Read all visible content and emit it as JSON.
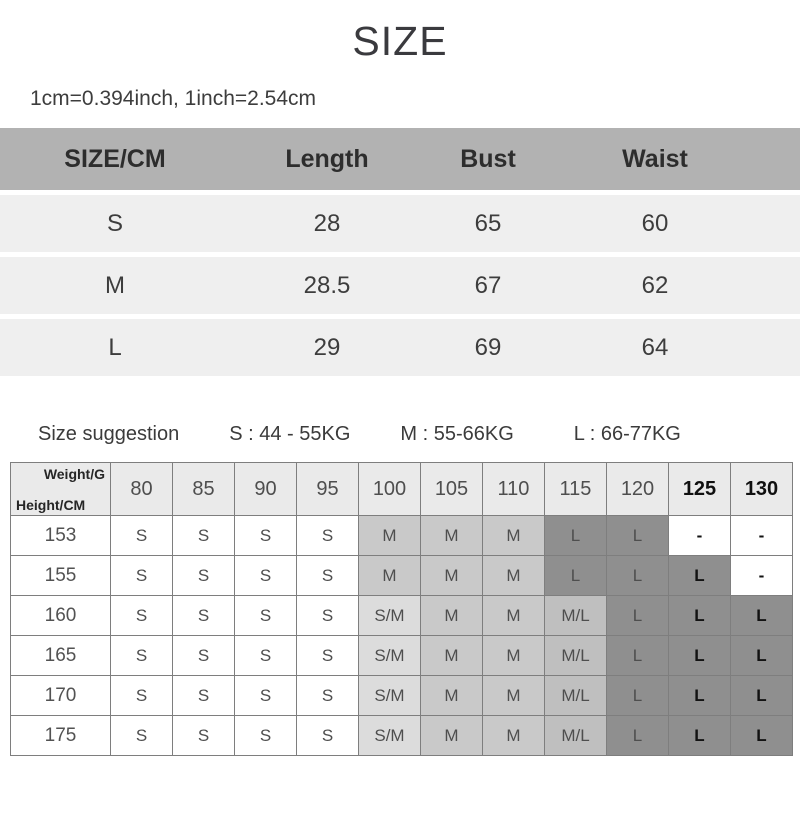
{
  "title": "SIZE",
  "conversion_note": "1cm=0.394inch, 1inch=2.54cm",
  "size_suggestion": {
    "label": "Size suggestion",
    "items": [
      "S : 44 - 55KG",
      "M : 55-66KG",
      "L : 66-77KG"
    ]
  },
  "chart_data": [
    {
      "type": "table",
      "name": "size-measurements-cm",
      "columns": [
        "SIZE/CM",
        "Length",
        "Bust",
        "Waist"
      ],
      "rows": [
        [
          "S",
          "28",
          "65",
          "60"
        ],
        [
          "M",
          "28.5",
          "67",
          "62"
        ],
        [
          "L",
          "29",
          "69",
          "64"
        ]
      ]
    },
    {
      "type": "table",
      "name": "height-weight-size-matrix",
      "corner_top_label": "Weight/G",
      "corner_bottom_label": "Height/CM",
      "weight_columns": [
        "80",
        "85",
        "90",
        "95",
        "100",
        "105",
        "110",
        "115",
        "120",
        "125",
        "130"
      ],
      "bold_weight_columns": [
        "125",
        "130"
      ],
      "rows": [
        {
          "height": "153",
          "cells": [
            {
              "v": "S",
              "s": "plain"
            },
            {
              "v": "S",
              "s": "plain"
            },
            {
              "v": "S",
              "s": "plain"
            },
            {
              "v": "S",
              "s": "plain"
            },
            {
              "v": "M",
              "s": "m"
            },
            {
              "v": "M",
              "s": "m"
            },
            {
              "v": "M",
              "s": "m"
            },
            {
              "v": "L",
              "s": "l"
            },
            {
              "v": "L",
              "s": "l"
            },
            {
              "v": "-",
              "s": "plain"
            },
            {
              "v": "-",
              "s": "plain"
            }
          ]
        },
        {
          "height": "155",
          "cells": [
            {
              "v": "S",
              "s": "plain"
            },
            {
              "v": "S",
              "s": "plain"
            },
            {
              "v": "S",
              "s": "plain"
            },
            {
              "v": "S",
              "s": "plain"
            },
            {
              "v": "M",
              "s": "m"
            },
            {
              "v": "M",
              "s": "m"
            },
            {
              "v": "M",
              "s": "m"
            },
            {
              "v": "L",
              "s": "l"
            },
            {
              "v": "L",
              "s": "l"
            },
            {
              "v": "L",
              "s": "l"
            },
            {
              "v": "-",
              "s": "plain"
            }
          ]
        },
        {
          "height": "160",
          "cells": [
            {
              "v": "S",
              "s": "plain"
            },
            {
              "v": "S",
              "s": "plain"
            },
            {
              "v": "S",
              "s": "plain"
            },
            {
              "v": "S",
              "s": "plain"
            },
            {
              "v": "S/M",
              "s": "sm"
            },
            {
              "v": "M",
              "s": "m"
            },
            {
              "v": "M",
              "s": "m"
            },
            {
              "v": "M/L",
              "s": "ml"
            },
            {
              "v": "L",
              "s": "l"
            },
            {
              "v": "L",
              "s": "l"
            },
            {
              "v": "L",
              "s": "l"
            }
          ]
        },
        {
          "height": "165",
          "cells": [
            {
              "v": "S",
              "s": "plain"
            },
            {
              "v": "S",
              "s": "plain"
            },
            {
              "v": "S",
              "s": "plain"
            },
            {
              "v": "S",
              "s": "plain"
            },
            {
              "v": "S/M",
              "s": "sm"
            },
            {
              "v": "M",
              "s": "m"
            },
            {
              "v": "M",
              "s": "m"
            },
            {
              "v": "M/L",
              "s": "ml"
            },
            {
              "v": "L",
              "s": "l"
            },
            {
              "v": "L",
              "s": "l"
            },
            {
              "v": "L",
              "s": "l"
            }
          ]
        },
        {
          "height": "170",
          "cells": [
            {
              "v": "S",
              "s": "plain"
            },
            {
              "v": "S",
              "s": "plain"
            },
            {
              "v": "S",
              "s": "plain"
            },
            {
              "v": "S",
              "s": "plain"
            },
            {
              "v": "S/M",
              "s": "sm"
            },
            {
              "v": "M",
              "s": "m"
            },
            {
              "v": "M",
              "s": "m"
            },
            {
              "v": "M/L",
              "s": "ml"
            },
            {
              "v": "L",
              "s": "l"
            },
            {
              "v": "L",
              "s": "l"
            },
            {
              "v": "L",
              "s": "l"
            }
          ]
        },
        {
          "height": "175",
          "cells": [
            {
              "v": "S",
              "s": "plain"
            },
            {
              "v": "S",
              "s": "plain"
            },
            {
              "v": "S",
              "s": "plain"
            },
            {
              "v": "S",
              "s": "plain"
            },
            {
              "v": "S/M",
              "s": "sm"
            },
            {
              "v": "M",
              "s": "m"
            },
            {
              "v": "M",
              "s": "m"
            },
            {
              "v": "M/L",
              "s": "ml"
            },
            {
              "v": "L",
              "s": "l"
            },
            {
              "v": "L",
              "s": "l"
            },
            {
              "v": "L",
              "s": "l"
            }
          ]
        }
      ]
    }
  ],
  "colors": {
    "table_header_gray": "#b2b2b2",
    "table_row_light": "#efefef",
    "matrix_header_bg": "#eaeaea",
    "zone_sm": "#dcdcdc",
    "zone_m": "#c9c9c9",
    "zone_ml": "#bfbfbf",
    "zone_l": "#8f8f8f",
    "text_dark": "#3d3d3d"
  }
}
